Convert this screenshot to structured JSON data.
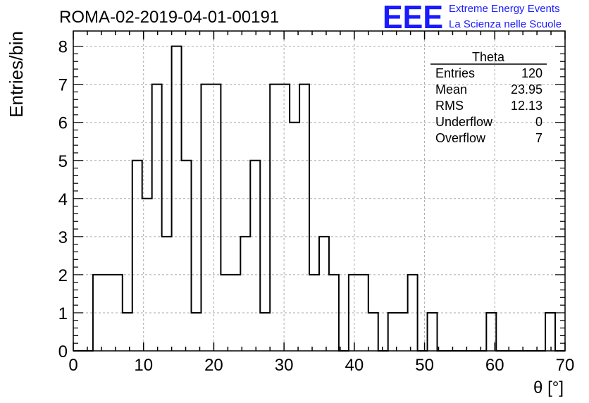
{
  "chart_data": {
    "type": "bar",
    "title": "ROMA-02-2019-04-01-00191",
    "xlabel": "θ [°]",
    "ylabel": "Entries/bin",
    "xlim": [
      0,
      70
    ],
    "ylim": [
      0,
      8.4
    ],
    "grid": true,
    "x_ticks": [
      0,
      10,
      20,
      30,
      40,
      50,
      60,
      70
    ],
    "y_ticks": [
      0,
      1,
      2,
      3,
      4,
      5,
      6,
      7,
      8
    ],
    "bin_width": 1.4,
    "bin_start": 0,
    "values": [
      0,
      0,
      2,
      2,
      2,
      1,
      5,
      4,
      7,
      3,
      8,
      5,
      1,
      7,
      7,
      2,
      2,
      3,
      5,
      1,
      7,
      7,
      6,
      7,
      2,
      3,
      2,
      0,
      2,
      2,
      1,
      0,
      1,
      1,
      2,
      0,
      1,
      0,
      0,
      0,
      0,
      0,
      1,
      0,
      0,
      0,
      0,
      0,
      1,
      0
    ],
    "stats_box": {
      "title": "Theta",
      "rows": [
        {
          "label": "Entries",
          "value": "120"
        },
        {
          "label": "Mean",
          "value": "23.95"
        },
        {
          "label": "RMS",
          "value": "12.13"
        },
        {
          "label": "Underflow",
          "value": "0"
        },
        {
          "label": "Overflow",
          "value": "7"
        }
      ]
    }
  },
  "logo": {
    "mark": "EEE",
    "line1": "Extreme Energy Events",
    "line2": "La Scienza nelle Scuole",
    "color": "#1a1aff"
  },
  "colors": {
    "line": "#000000",
    "grid": "#aaaaaa",
    "logo": "#1a1aff"
  }
}
